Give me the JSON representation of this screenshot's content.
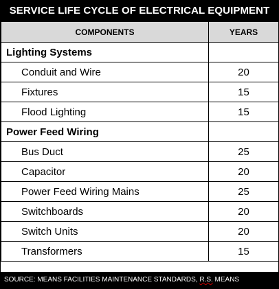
{
  "title": "SERVICE LIFE CYCLE OF ELECTRICAL EQUIPMENT",
  "headers": {
    "components": "COMPONENTS",
    "years": "YEARS"
  },
  "sections": [
    {
      "name": "Lighting Systems",
      "items": [
        {
          "component": "Conduit and Wire",
          "years": "20"
        },
        {
          "component": "Fixtures",
          "years": "15"
        },
        {
          "component": "Flood Lighting",
          "years": "15"
        }
      ]
    },
    {
      "name": "Power Feed Wiring",
      "items": [
        {
          "component": "Bus Duct",
          "years": "25"
        },
        {
          "component": "Capacitor",
          "years": "20"
        },
        {
          "component": "Power Feed Wiring Mains",
          "years": "25"
        },
        {
          "component": "Switchboards",
          "years": "20"
        },
        {
          "component": "Switch Units",
          "years": "20"
        },
        {
          "component": "Transformers",
          "years": "15"
        }
      ]
    }
  ],
  "footer": {
    "source_prefix": "SOURCE: MEANS FACILITIES MAINTENANCE STANDARDS, ",
    "source_author": "R.S.",
    "source_suffix": " MEANS"
  }
}
